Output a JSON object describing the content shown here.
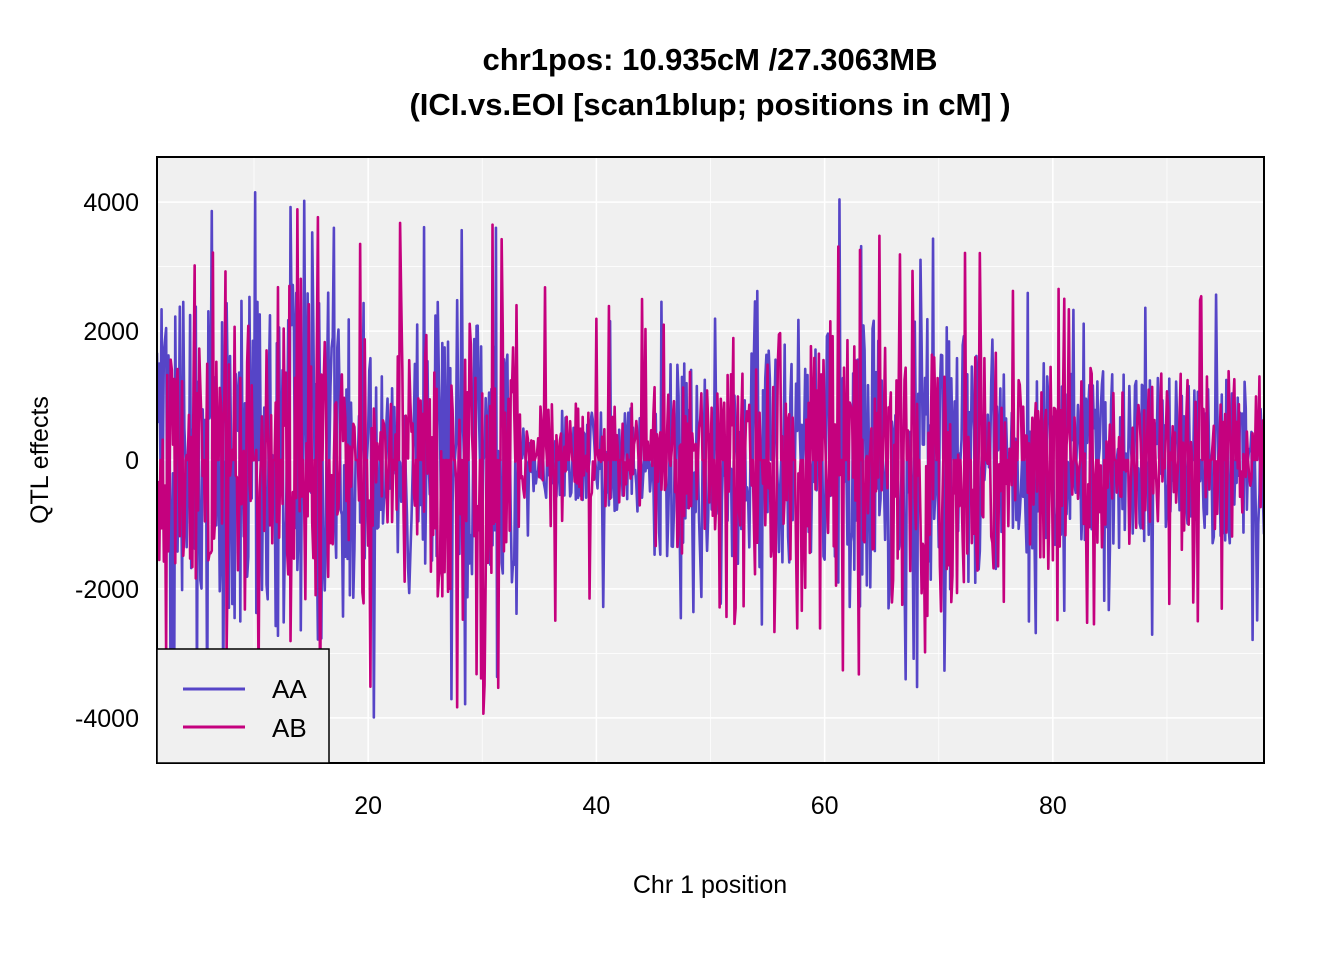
{
  "chart_data": {
    "type": "line",
    "title": "chr1pos: 10.935cM /27.3063MB",
    "subtitle": "(ICI.vs.EOI [scan1blup; positions in cM] )",
    "xlabel": "Chr 1 position",
    "ylabel": "QTL effects",
    "xlim": [
      1.5,
      98.5
    ],
    "ylim": [
      -4700,
      4700
    ],
    "x_ticks": [
      20,
      40,
      60,
      80
    ],
    "x_tick_labels": [
      "20",
      "40",
      "60",
      "80"
    ],
    "y_ticks": [
      -4000,
      -2000,
      0,
      2000,
      4000
    ],
    "y_tick_labels": [
      "-4000",
      "-2000",
      "0",
      "2000",
      "4000"
    ],
    "grid": true,
    "legend_position": "bottom-left",
    "step_cM": 0.1,
    "series": [
      {
        "name": "AA",
        "color": "#5645C7",
        "segments": [
          {
            "x": [
              1.5,
              11.0
            ],
            "amp": 2600,
            "peak": 4500
          },
          {
            "x": [
              11.0,
              17.0
            ],
            "amp": 2800,
            "peak": 4200
          },
          {
            "x": [
              17.0,
              20.5
            ],
            "amp": 2500,
            "peak": 4000
          },
          {
            "x": [
              20.5,
              22.5
            ],
            "amp": 1300,
            "peak": 3100
          },
          {
            "x": [
              22.5,
              26.0
            ],
            "amp": 2400,
            "peak": 3800
          },
          {
            "x": [
              26.0,
              29.5
            ],
            "amp": 2500,
            "peak": 4000
          },
          {
            "x": [
              29.5,
              33.0
            ],
            "amp": 2500,
            "peak": 4050
          },
          {
            "x": [
              33.0,
              35.5
            ],
            "amp": 500,
            "peak": 1200
          },
          {
            "x": [
              35.5,
              45.0
            ],
            "amp": 800,
            "peak": 2300
          },
          {
            "x": [
              45.0,
              53.0
            ],
            "amp": 1700,
            "peak": 2600
          },
          {
            "x": [
              53.0,
              60.0
            ],
            "amp": 1800,
            "peak": 2700
          },
          {
            "x": [
              60.0,
              66.0
            ],
            "amp": 2300,
            "peak": 4050
          },
          {
            "x": [
              66.0,
              75.0
            ],
            "amp": 2200,
            "peak": 3600
          },
          {
            "x": [
              75.0,
              80.0
            ],
            "amp": 1500,
            "peak": 2700
          },
          {
            "x": [
              80.0,
              88.0
            ],
            "amp": 1400,
            "peak": 2600
          },
          {
            "x": [
              88.0,
              98.5
            ],
            "amp": 1300,
            "peak": 2800
          }
        ]
      },
      {
        "name": "AB",
        "color": "#C5017E",
        "segments": [
          {
            "x": [
              1.5,
              11.0
            ],
            "amp": 2200,
            "peak": 3400
          },
          {
            "x": [
              11.0,
              17.0
            ],
            "amp": 2600,
            "peak": 4250
          },
          {
            "x": [
              17.0,
              20.5
            ],
            "amp": 2000,
            "peak": 4000
          },
          {
            "x": [
              20.5,
              22.5
            ],
            "amp": 1000,
            "peak": 2000
          },
          {
            "x": [
              22.5,
              26.0
            ],
            "amp": 2400,
            "peak": 4000
          },
          {
            "x": [
              26.0,
              29.5
            ],
            "amp": 2300,
            "peak": 4000
          },
          {
            "x": [
              29.5,
              33.0
            ],
            "amp": 2200,
            "peak": 4000
          },
          {
            "x": [
              33.0,
              35.5
            ],
            "amp": 900,
            "peak": 2800
          },
          {
            "x": [
              35.5,
              45.0
            ],
            "amp": 900,
            "peak": 2500
          },
          {
            "x": [
              45.0,
              53.0
            ],
            "amp": 1700,
            "peak": 2600
          },
          {
            "x": [
              53.0,
              60.0
            ],
            "amp": 1800,
            "peak": 2700
          },
          {
            "x": [
              60.0,
              66.0
            ],
            "amp": 2300,
            "peak": 4050
          },
          {
            "x": [
              66.0,
              75.0
            ],
            "amp": 2200,
            "peak": 3600
          },
          {
            "x": [
              75.0,
              80.0
            ],
            "amp": 1500,
            "peak": 2700
          },
          {
            "x": [
              80.0,
              88.0
            ],
            "amp": 1500,
            "peak": 2700
          },
          {
            "x": [
              88.0,
              98.5
            ],
            "amp": 1300,
            "peak": 2700
          }
        ]
      }
    ],
    "background_color": "#F0F0F0",
    "grid_color": "#FFFFFF"
  }
}
